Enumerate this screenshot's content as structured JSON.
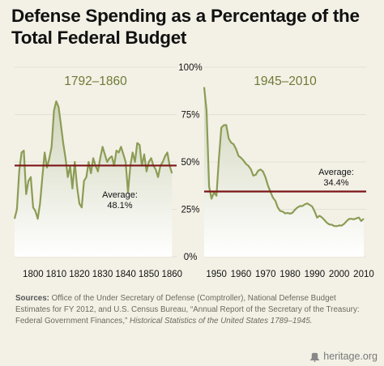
{
  "title_line1": "Defense Spending as a Percentage of the",
  "title_line2": "Total Federal Budget",
  "chart_data": [
    {
      "type": "line",
      "title": "1792–1860",
      "xlim": [
        1792,
        1862
      ],
      "ylim": [
        0,
        100
      ],
      "xticks": [
        "1800",
        "1810",
        "1820",
        "1830",
        "1840",
        "1850",
        "1860"
      ],
      "series": [
        {
          "x": [
            1792,
            1793,
            1794,
            1795,
            1796,
            1797,
            1798,
            1799,
            1800,
            1801,
            1802,
            1803,
            1804,
            1805,
            1806,
            1807,
            1808,
            1809,
            1810,
            1811,
            1812,
            1813,
            1814,
            1815,
            1816,
            1817,
            1818,
            1819,
            1820,
            1821,
            1822,
            1823,
            1824,
            1825,
            1826,
            1827,
            1828,
            1829,
            1830,
            1831,
            1832,
            1833,
            1834,
            1835,
            1836,
            1837,
            1838,
            1839,
            1840,
            1841,
            1842,
            1843,
            1844,
            1845,
            1846,
            1847,
            1848,
            1849,
            1850,
            1851,
            1852,
            1853,
            1854,
            1855,
            1856,
            1857,
            1858,
            1859,
            1860
          ],
          "values": [
            20,
            25,
            45,
            55,
            56,
            33,
            40,
            42,
            26,
            24,
            20,
            28,
            42,
            55,
            47,
            52,
            58,
            77,
            82,
            79,
            70,
            60,
            52,
            42,
            48,
            36,
            50,
            37,
            28,
            26,
            40,
            42,
            50,
            44,
            52,
            48,
            45,
            52,
            58,
            54,
            50,
            52,
            53,
            48,
            56,
            55,
            58,
            54,
            50,
            34,
            48,
            55,
            50,
            60,
            59,
            48,
            54,
            45,
            50,
            52,
            48,
            46,
            42,
            48,
            50,
            53,
            55,
            48,
            44
          ]
        }
      ],
      "average_line": 48.1,
      "annotation": "Average:\n48.1%"
    },
    {
      "type": "line",
      "title": "1945–2010",
      "xlim": [
        1945,
        2011
      ],
      "ylim": [
        0,
        100
      ],
      "xticks": [
        "1950",
        "1960",
        "1970",
        "1980",
        "1990",
        "2000",
        "2010"
      ],
      "yticks": [
        "0%",
        "25%",
        "50%",
        "75%",
        "100%"
      ],
      "series": [
        {
          "x": [
            1945,
            1946,
            1947,
            1948,
            1949,
            1950,
            1951,
            1952,
            1953,
            1954,
            1955,
            1956,
            1957,
            1958,
            1959,
            1960,
            1961,
            1962,
            1963,
            1964,
            1965,
            1966,
            1967,
            1968,
            1969,
            1970,
            1971,
            1972,
            1973,
            1974,
            1975,
            1976,
            1977,
            1978,
            1979,
            1980,
            1981,
            1982,
            1983,
            1984,
            1985,
            1986,
            1987,
            1988,
            1989,
            1990,
            1991,
            1992,
            1993,
            1994,
            1995,
            1996,
            1997,
            1998,
            1999,
            2000,
            2001,
            2002,
            2003,
            2004,
            2005,
            2006,
            2007,
            2008,
            2009,
            2010
          ],
          "values": [
            89.5,
            77,
            37,
            30.6,
            33.9,
            32.2,
            51.8,
            68.1,
            69.4,
            69.5,
            62.4,
            60.2,
            59.3,
            56.8,
            53.2,
            52.2,
            50.8,
            49,
            48,
            46.2,
            42.8,
            43.2,
            45.4,
            46,
            44.9,
            41.8,
            37.5,
            34.3,
            31.2,
            29.5,
            26,
            24.1,
            23.8,
            22.8,
            23.1,
            22.7,
            23.2,
            24.8,
            26,
            26.7,
            26.7,
            27.6,
            28.1,
            27.3,
            26.5,
            23.9,
            20.6,
            21.6,
            20.7,
            19.3,
            17.9,
            17,
            16.9,
            16.2,
            16.1,
            16.5,
            16.4,
            17.3,
            18.7,
            19.9,
            20,
            19.7,
            20.2,
            20.7,
            18.8,
            20.1
          ]
        }
      ],
      "average_line": 34.4,
      "annotation": "Average:\n34.4%"
    }
  ],
  "sources_label": "Sources:",
  "sources_text": "Office of the Under Secretary of Defense (Comptroller), National Defense Budget Estimates for FY 2012, and U.S. Census Bureau, “Annual Report of the Secretary of the Treasury: Federal Government Finances,”",
  "sources_italic": "Historical Statistics of the United States 1789–1945.",
  "footer_text": "heritage.org",
  "colors": {
    "series_line": "#8c9c55",
    "fill_top": "#cfd4b9",
    "fill_bottom": "#ffffff",
    "average_line": "#7b1517",
    "panel_title": "#6f7a35",
    "axis_text": "#111111",
    "gridline": "#d4d1c4"
  }
}
